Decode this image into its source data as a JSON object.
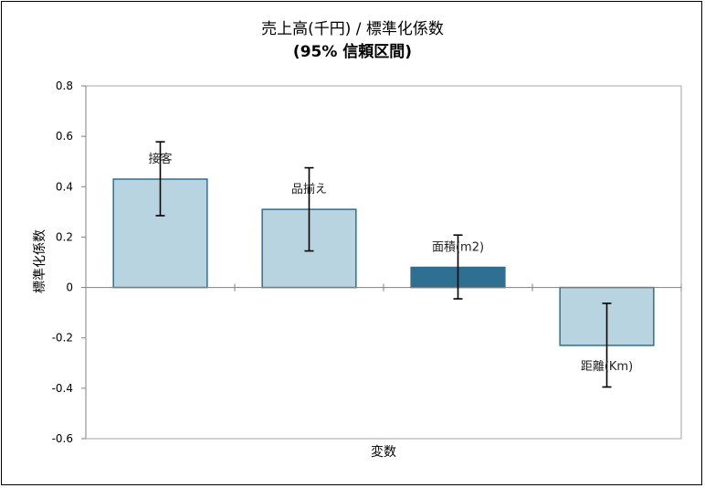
{
  "chart_data": {
    "type": "bar",
    "title": "売上高(千円) / 標準化係数",
    "subtitle": "(95% 信頼区間)",
    "xlabel": "変数",
    "ylabel": "標準化係数",
    "ylim": [
      -0.6,
      0.8
    ],
    "yticks": [
      "0.8",
      "0.6",
      "0.4",
      "0.2",
      "0",
      "-0.2",
      "-0.4",
      "-0.6"
    ],
    "ytick_values": [
      0.8,
      0.6,
      0.4,
      0.2,
      0,
      -0.2,
      -0.4,
      -0.6
    ],
    "categories": [
      "接客",
      "品揃え",
      "面積(m2)",
      "距離(Km)"
    ],
    "values": [
      0.43,
      0.31,
      0.08,
      -0.23
    ],
    "ci_lower": [
      0.285,
      0.145,
      -0.045,
      -0.395
    ],
    "ci_upper": [
      0.578,
      0.475,
      0.208,
      -0.063
    ],
    "bar_colors": [
      "#b9d4e1",
      "#b9d4e1",
      "#2e6f92",
      "#b9d4e1"
    ],
    "bar_border_color": "#2e6f92",
    "grid": false,
    "legend": "none"
  }
}
